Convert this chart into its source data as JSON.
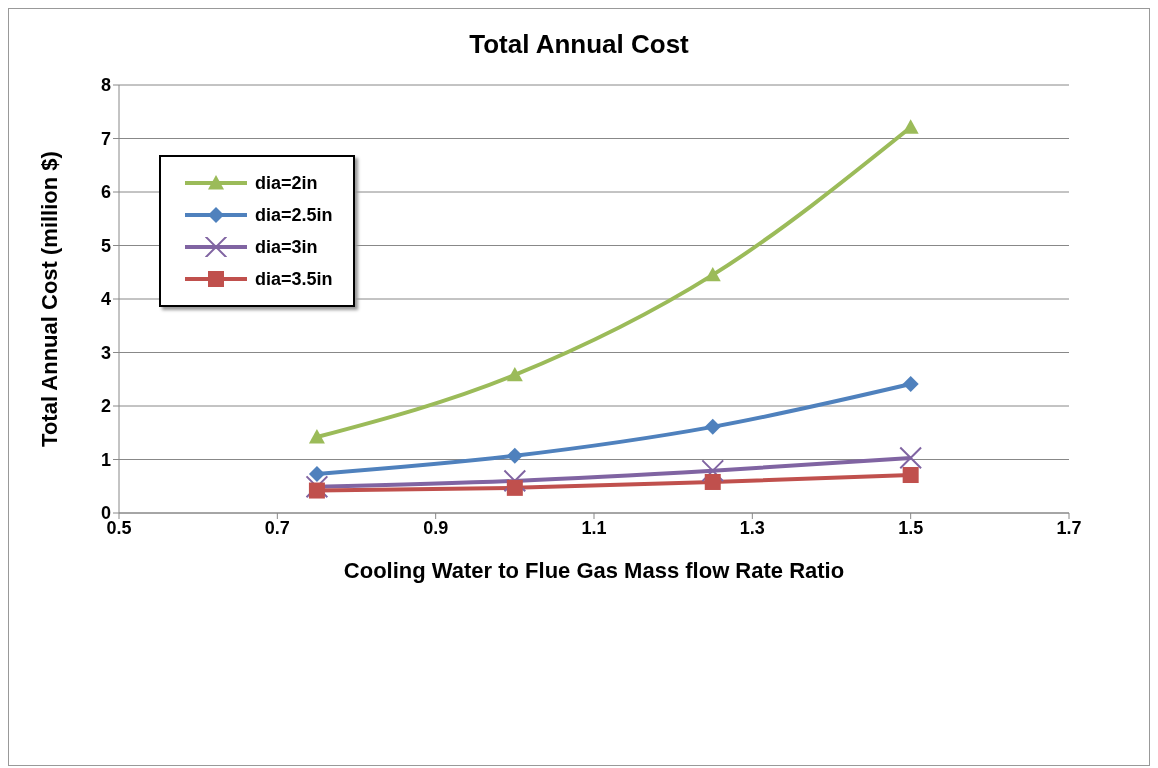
{
  "chart_data": {
    "type": "line",
    "title": "Total Annual Cost",
    "xlabel": "Cooling Water to Flue Gas Mass flow Rate Ratio",
    "ylabel": "Total Annual Cost (million $)",
    "x": [
      0.75,
      1.0,
      1.25,
      1.5
    ],
    "series": [
      {
        "name": "dia=2in",
        "color": "#9bbb59",
        "marker": "triangle",
        "values": [
          1.42,
          2.58,
          4.45,
          7.21
        ]
      },
      {
        "name": "dia=2.5in",
        "color": "#4f81bd",
        "marker": "diamond",
        "values": [
          0.73,
          1.07,
          1.61,
          2.41
        ]
      },
      {
        "name": "dia=3in",
        "color": "#8064a2",
        "marker": "cross",
        "values": [
          0.49,
          0.6,
          0.79,
          1.03
        ]
      },
      {
        "name": "dia=3.5in",
        "color": "#c0504d",
        "marker": "square",
        "values": [
          0.42,
          0.47,
          0.58,
          0.71
        ]
      }
    ],
    "xlim": [
      0.5,
      1.7
    ],
    "xticks": [
      0.5,
      0.7,
      0.9,
      1.1,
      1.3,
      1.5,
      1.7
    ],
    "ylim": [
      0,
      8
    ],
    "yticks": [
      0,
      1,
      2,
      3,
      4,
      5,
      6,
      7,
      8
    ],
    "grid": "y",
    "legend": "top left",
    "line_style": "solid"
  }
}
